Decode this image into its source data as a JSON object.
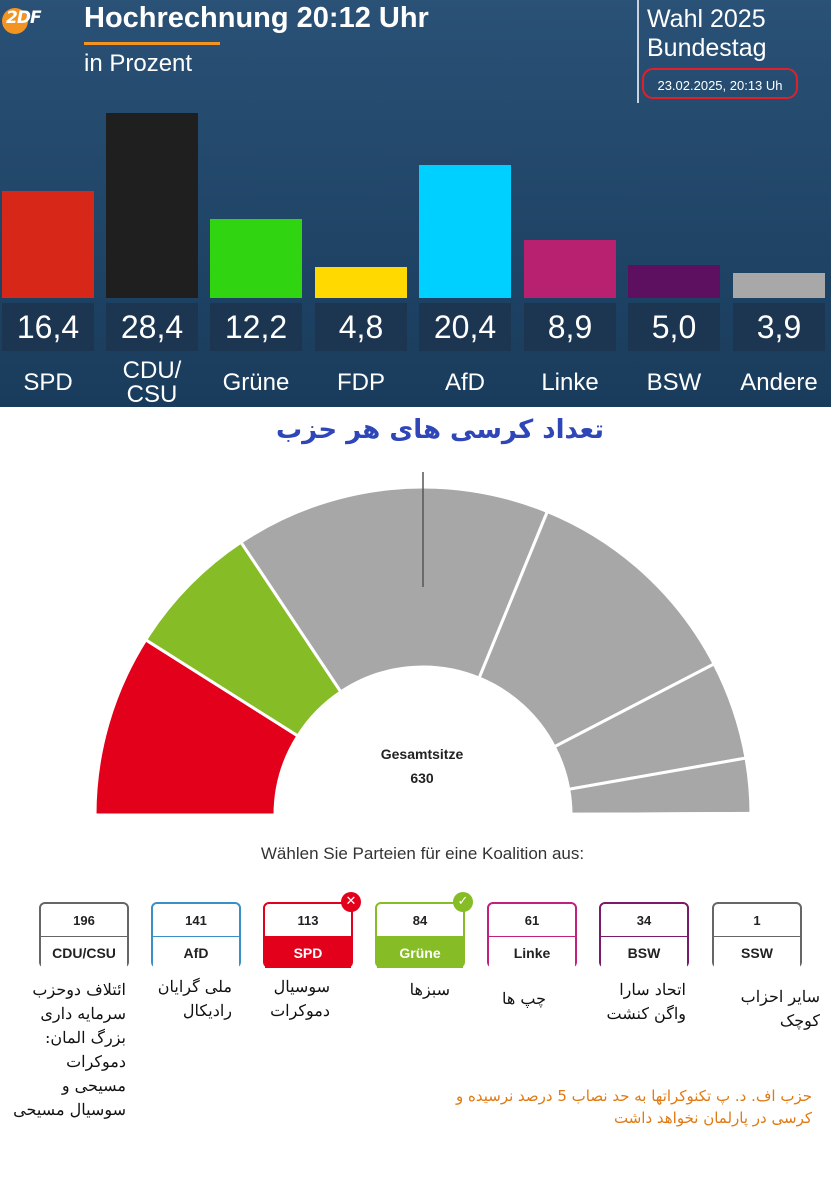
{
  "header": {
    "logo_text": "2DF",
    "title": "Hochrechnung 20:12 Uhr",
    "subtitle": "in Prozent",
    "election_line1": "Wahl 2025",
    "election_line2": "Bundestag",
    "timestamp": "23.02.2025, 20:13 Uh",
    "accent_color": "#f39322"
  },
  "chart_data": [
    {
      "type": "bar",
      "title": "Hochrechnung 20:12 Uhr",
      "subtitle": "in Prozent",
      "categories": [
        "SPD",
        "CDU/ CSU",
        "Grüne",
        "FDP",
        "AfD",
        "Linke",
        "BSW",
        "Andere"
      ],
      "values": [
        16.4,
        28.4,
        12.2,
        4.8,
        20.4,
        8.9,
        5.0,
        3.9
      ],
      "value_labels": [
        "16,4",
        "28,4",
        "12,2",
        "4,8",
        "20,4",
        "8,9",
        "5,0",
        "3,9"
      ],
      "colors": [
        "#d62718",
        "#1f1f1f",
        "#30d410",
        "#ffd900",
        "#00d0ff",
        "#b82070",
        "#5e1060",
        "#a8a8a8"
      ],
      "ylim": [
        0,
        28.4
      ]
    },
    {
      "type": "pie",
      "title": "تعداد کرسی های هر حزب",
      "center_label": "Gesamtsitze",
      "total": "630",
      "segments": [
        {
          "party": "SPD",
          "seats": 113,
          "color": "#e2001a"
        },
        {
          "party": "Grüne",
          "seats": 84,
          "color": "#86bc25"
        },
        {
          "party": "CDU/CSU",
          "seats": 196,
          "color": "#a7a7a7"
        },
        {
          "party": "AfD",
          "seats": 141,
          "color": "#a7a7a7"
        },
        {
          "party": "Linke",
          "seats": 61,
          "color": "#a7a7a7"
        },
        {
          "party": "BSW",
          "seats": 34,
          "color": "#a7a7a7"
        },
        {
          "party": "SSW",
          "seats": 1,
          "color": "#a7a7a7"
        }
      ]
    }
  ],
  "coalition": {
    "instruction": "Wählen Sie Parteien für eine Koalition aus:",
    "parties": [
      {
        "seats": "196",
        "name": "CDU/CSU",
        "border": "#666666",
        "fill": "#ffffff",
        "text": "#222222",
        "badge": "",
        "badge_color": "",
        "fa": "ائتلاف دوحزب سرمایه داری بزرگ المان: دموکرات مسیحی و سوسیال مسیحی"
      },
      {
        "seats": "141",
        "name": "AfD",
        "border": "#3a8fc7",
        "fill": "#ffffff",
        "text": "#222222",
        "badge": "",
        "badge_color": "",
        "fa": "ملی گرایان رادیکال"
      },
      {
        "seats": "113",
        "name": "SPD",
        "border": "#e2001a",
        "fill": "#e2001a",
        "text": "#ffffff",
        "badge": "✕",
        "badge_color": "#e2001a",
        "fa": "سوسیال دموکرات"
      },
      {
        "seats": "84",
        "name": "Grüne",
        "border": "#86bc25",
        "fill": "#86bc25",
        "text": "#ffffff",
        "badge": "✓",
        "badge_color": "#86bc25",
        "fa": "سبزها"
      },
      {
        "seats": "61",
        "name": "Linke",
        "border": "#c2207e",
        "fill": "#ffffff",
        "text": "#222222",
        "badge": "",
        "badge_color": "",
        "fa": "چپ ها"
      },
      {
        "seats": "34",
        "name": "BSW",
        "border": "#7a1a6a",
        "fill": "#ffffff",
        "text": "#222222",
        "badge": "",
        "badge_color": "",
        "fa": "اتحاد سارا واگن کنشت"
      },
      {
        "seats": "1",
        "name": "SSW",
        "border": "#666666",
        "fill": "#ffffff",
        "text": "#222222",
        "badge": "",
        "badge_color": "",
        "fa": "سایر احزاب کوچک"
      }
    ],
    "note": "حزب اف. د. پ تکنوکراتها به حد نصاب 5 درصد نرسیده و کرسی در پارلمان نخواهد داشت",
    "note_color": "#e07a12"
  }
}
